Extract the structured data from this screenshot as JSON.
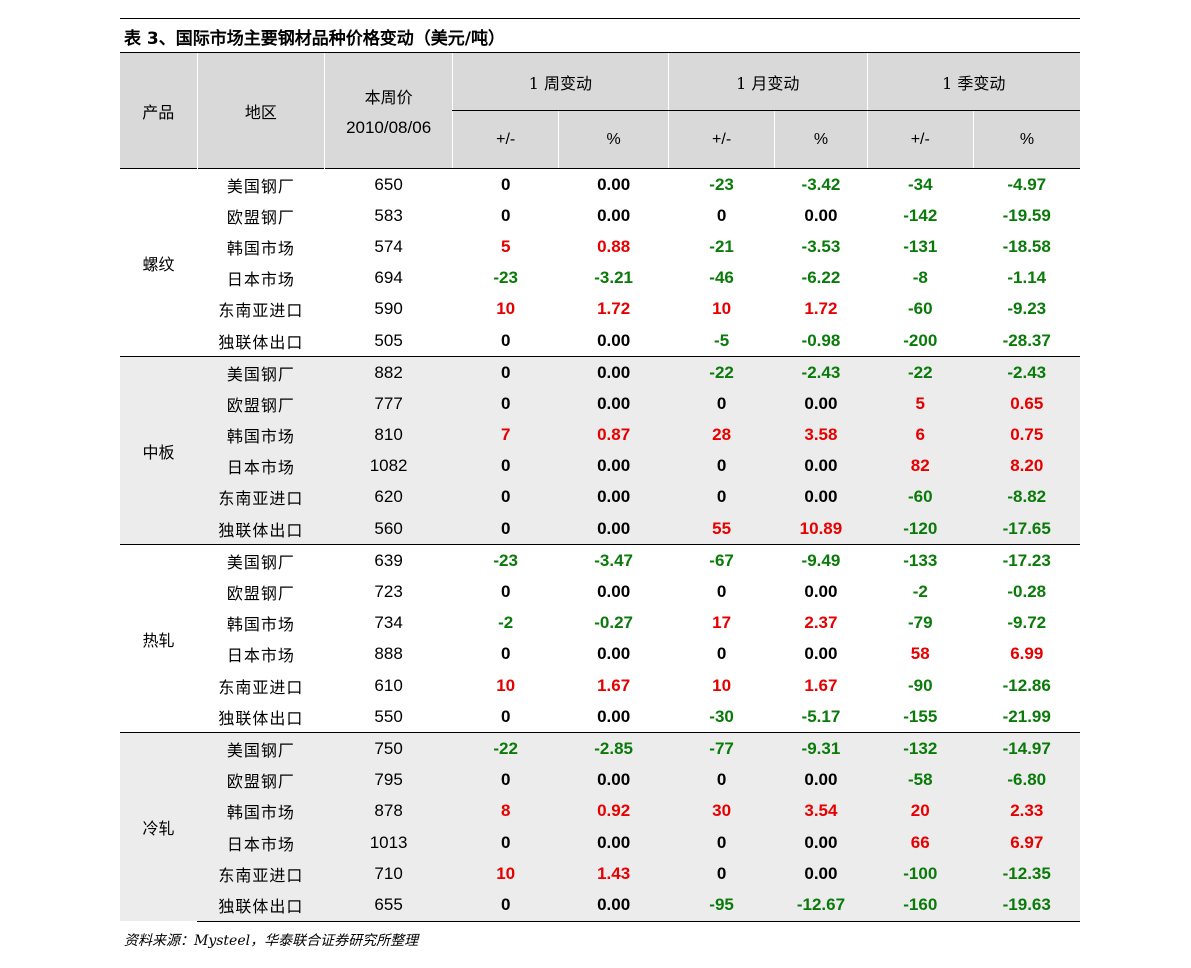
{
  "title": "表 3、国际市场主要钢材品种价格变动（美元/吨）",
  "header": {
    "product": "产品",
    "region": "地区",
    "price_label": "本周价",
    "price_date": "2010/08/06",
    "groups": [
      "1 周变动",
      "1 月变动",
      "1 季变动"
    ],
    "sub_abs": "+/-",
    "sub_pct": "%"
  },
  "groups": [
    {
      "category": "螺纹",
      "rows": [
        {
          "region": "美国钢厂",
          "price": "650",
          "w_abs": "0",
          "w_pct": "0.00",
          "m_abs": "-23",
          "m_pct": "-3.42",
          "q_abs": "-34",
          "q_pct": "-4.97"
        },
        {
          "region": "欧盟钢厂",
          "price": "583",
          "w_abs": "0",
          "w_pct": "0.00",
          "m_abs": "0",
          "m_pct": "0.00",
          "q_abs": "-142",
          "q_pct": "-19.59"
        },
        {
          "region": "韩国市场",
          "price": "574",
          "w_abs": "5",
          "w_pct": "0.88",
          "m_abs": "-21",
          "m_pct": "-3.53",
          "q_abs": "-131",
          "q_pct": "-18.58"
        },
        {
          "region": "日本市场",
          "price": "694",
          "w_abs": "-23",
          "w_pct": "-3.21",
          "m_abs": "-46",
          "m_pct": "-6.22",
          "q_abs": "-8",
          "q_pct": "-1.14"
        },
        {
          "region": "东南亚进口",
          "price": "590",
          "w_abs": "10",
          "w_pct": "1.72",
          "m_abs": "10",
          "m_pct": "1.72",
          "q_abs": "-60",
          "q_pct": "-9.23"
        },
        {
          "region": "独联体出口",
          "price": "505",
          "w_abs": "0",
          "w_pct": "0.00",
          "m_abs": "-5",
          "m_pct": "-0.98",
          "q_abs": "-200",
          "q_pct": "-28.37"
        }
      ]
    },
    {
      "category": "中板",
      "rows": [
        {
          "region": "美国钢厂",
          "price": "882",
          "w_abs": "0",
          "w_pct": "0.00",
          "m_abs": "-22",
          "m_pct": "-2.43",
          "q_abs": "-22",
          "q_pct": "-2.43"
        },
        {
          "region": "欧盟钢厂",
          "price": "777",
          "w_abs": "0",
          "w_pct": "0.00",
          "m_abs": "0",
          "m_pct": "0.00",
          "q_abs": "5",
          "q_pct": "0.65"
        },
        {
          "region": "韩国市场",
          "price": "810",
          "w_abs": "7",
          "w_pct": "0.87",
          "m_abs": "28",
          "m_pct": "3.58",
          "q_abs": "6",
          "q_pct": "0.75"
        },
        {
          "region": "日本市场",
          "price": "1082",
          "w_abs": "0",
          "w_pct": "0.00",
          "m_abs": "0",
          "m_pct": "0.00",
          "q_abs": "82",
          "q_pct": "8.20"
        },
        {
          "region": "东南亚进口",
          "price": "620",
          "w_abs": "0",
          "w_pct": "0.00",
          "m_abs": "0",
          "m_pct": "0.00",
          "q_abs": "-60",
          "q_pct": "-8.82"
        },
        {
          "region": "独联体出口",
          "price": "560",
          "w_abs": "0",
          "w_pct": "0.00",
          "m_abs": "55",
          "m_pct": "10.89",
          "q_abs": "-120",
          "q_pct": "-17.65"
        }
      ]
    },
    {
      "category": "热轧",
      "rows": [
        {
          "region": "美国钢厂",
          "price": "639",
          "w_abs": "-23",
          "w_pct": "-3.47",
          "m_abs": "-67",
          "m_pct": "-9.49",
          "q_abs": "-133",
          "q_pct": "-17.23"
        },
        {
          "region": "欧盟钢厂",
          "price": "723",
          "w_abs": "0",
          "w_pct": "0.00",
          "m_abs": "0",
          "m_pct": "0.00",
          "q_abs": "-2",
          "q_pct": "-0.28"
        },
        {
          "region": "韩国市场",
          "price": "734",
          "w_abs": "-2",
          "w_pct": "-0.27",
          "m_abs": "17",
          "m_pct": "2.37",
          "q_abs": "-79",
          "q_pct": "-9.72"
        },
        {
          "region": "日本市场",
          "price": "888",
          "w_abs": "0",
          "w_pct": "0.00",
          "m_abs": "0",
          "m_pct": "0.00",
          "q_abs": "58",
          "q_pct": "6.99"
        },
        {
          "region": "东南亚进口",
          "price": "610",
          "w_abs": "10",
          "w_pct": "1.67",
          "m_abs": "10",
          "m_pct": "1.67",
          "q_abs": "-90",
          "q_pct": "-12.86"
        },
        {
          "region": "独联体出口",
          "price": "550",
          "w_abs": "0",
          "w_pct": "0.00",
          "m_abs": "-30",
          "m_pct": "-5.17",
          "q_abs": "-155",
          "q_pct": "-21.99"
        }
      ]
    },
    {
      "category": "冷轧",
      "rows": [
        {
          "region": "美国钢厂",
          "price": "750",
          "w_abs": "-22",
          "w_pct": "-2.85",
          "m_abs": "-77",
          "m_pct": "-9.31",
          "q_abs": "-132",
          "q_pct": "-14.97"
        },
        {
          "region": "欧盟钢厂",
          "price": "795",
          "w_abs": "0",
          "w_pct": "0.00",
          "m_abs": "0",
          "m_pct": "0.00",
          "q_abs": "-58",
          "q_pct": "-6.80"
        },
        {
          "region": "韩国市场",
          "price": "878",
          "w_abs": "8",
          "w_pct": "0.92",
          "m_abs": "30",
          "m_pct": "3.54",
          "q_abs": "20",
          "q_pct": "2.33"
        },
        {
          "region": "日本市场",
          "price": "1013",
          "w_abs": "0",
          "w_pct": "0.00",
          "m_abs": "0",
          "m_pct": "0.00",
          "q_abs": "66",
          "q_pct": "6.97"
        },
        {
          "region": "东南亚进口",
          "price": "710",
          "w_abs": "10",
          "w_pct": "1.43",
          "m_abs": "0",
          "m_pct": "0.00",
          "q_abs": "-100",
          "q_pct": "-12.35"
        },
        {
          "region": "独联体出口",
          "price": "655",
          "w_abs": "0",
          "w_pct": "0.00",
          "m_abs": "-95",
          "m_pct": "-12.67",
          "q_abs": "-160",
          "q_pct": "-19.63"
        }
      ]
    }
  ],
  "colors": {
    "positive": "#e60000",
    "negative": "#0a7a0a",
    "zero": "#000000",
    "header_bg": "#d9d9d9",
    "shaded_bg": "#ececec"
  },
  "source": "资料来源：Mysteel，华泰联合证券研究所整理"
}
